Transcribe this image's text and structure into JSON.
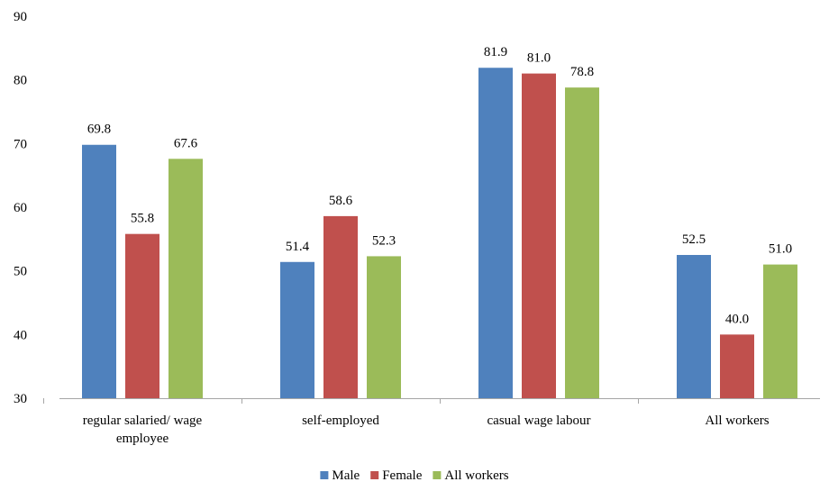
{
  "chart_data": {
    "type": "bar",
    "categories": [
      [
        "regular salaried/ wage",
        "employee"
      ],
      [
        "self-employed"
      ],
      [
        "casual wage labour"
      ],
      [
        "All workers"
      ]
    ],
    "series": [
      {
        "name": "Male",
        "color": "#4F81BD",
        "values": [
          69.8,
          51.4,
          81.9,
          52.5
        ],
        "labels": [
          "69.8",
          "51.4",
          "81.9",
          "52.5"
        ]
      },
      {
        "name": "Female",
        "color": "#C0504D",
        "values": [
          55.8,
          58.6,
          81.0,
          40.0
        ],
        "labels": [
          "55.8",
          "58.6",
          "81.0",
          "40.0"
        ]
      },
      {
        "name": "All workers",
        "color": "#9BBB59",
        "values": [
          67.6,
          52.3,
          78.8,
          51.0
        ],
        "labels": [
          "67.6",
          "52.3",
          "78.8",
          "51.0"
        ]
      }
    ],
    "ylim": [
      30,
      90
    ],
    "yticks": [
      "30",
      "40",
      "50",
      "60",
      "70",
      "80",
      "90"
    ],
    "grid": false,
    "legend": "bottom-center"
  }
}
